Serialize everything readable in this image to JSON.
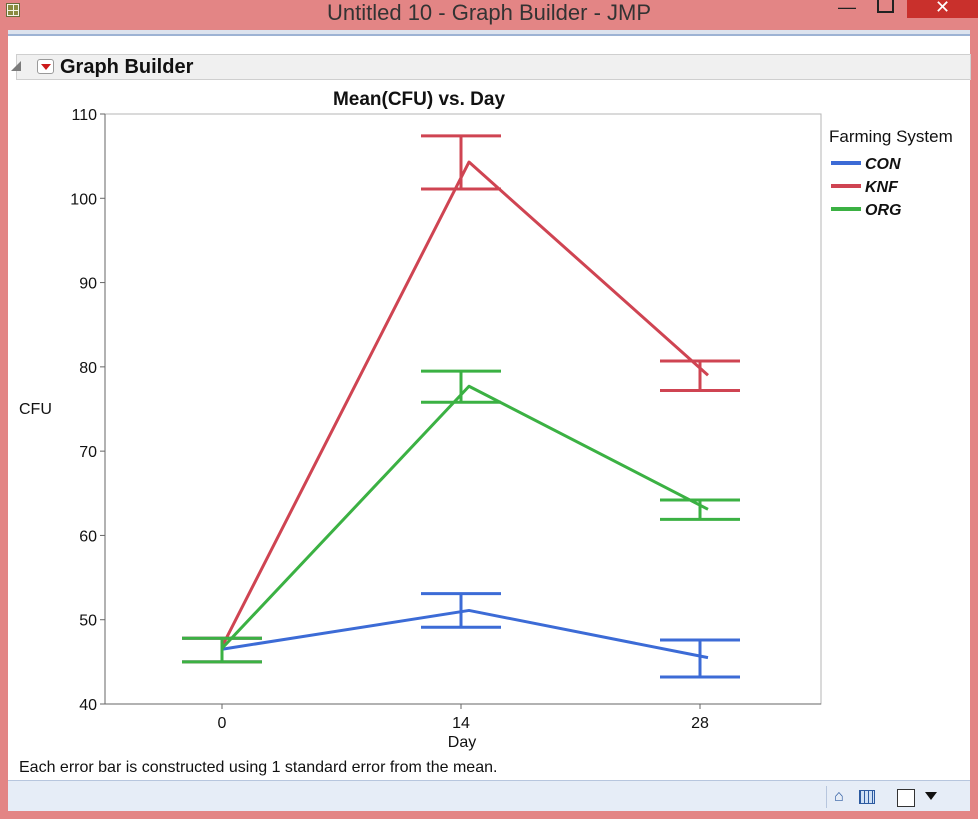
{
  "window": {
    "title": "Untitled 10 - Graph Builder - JMP",
    "minimize_glyph": "—",
    "close_glyph": "✕"
  },
  "outline": {
    "title": "Graph Builder"
  },
  "icons": {
    "app": "jmp-grid-icon",
    "disclosure": "disclosure-triangle-icon",
    "red_menu": "red-triangle-menu-icon",
    "home": "home-icon",
    "data_grid": "data-grid-icon",
    "selection": "square-icon",
    "dropdown": "dropdown-icon"
  },
  "status_icons": {
    "home_glyph": "⌂"
  },
  "footnote": "Each error bar is constructed using 1 standard error from the mean.",
  "chart_data": {
    "type": "line",
    "title": "Mean(CFU) vs. Day",
    "xlabel": "Day",
    "ylabel": "CFU",
    "x": [
      0,
      14,
      28
    ],
    "x_ticks": [
      "0",
      "14",
      "28"
    ],
    "ylim": [
      40,
      110
    ],
    "y_ticks": [
      40,
      50,
      60,
      70,
      80,
      90,
      100,
      110
    ],
    "grid": false,
    "legend": {
      "title": "Farming System",
      "position": "right"
    },
    "error_bars": "1 standard error",
    "series": [
      {
        "name": "CON",
        "color": "#3c6bd6",
        "values": [
          46.5,
          51.1,
          45.5
        ],
        "err_low": [
          45.0,
          49.1,
          43.2
        ],
        "err_high": [
          47.8,
          53.1,
          47.6
        ]
      },
      {
        "name": "KNF",
        "color": "#cf4452",
        "values": [
          46.8,
          104.3,
          79.0
        ],
        "err_low": [
          45.0,
          101.1,
          77.2
        ],
        "err_high": [
          47.8,
          107.4,
          80.7
        ]
      },
      {
        "name": "ORG",
        "color": "#3bb143",
        "values": [
          46.6,
          77.7,
          63.1
        ],
        "err_low": [
          45.0,
          75.8,
          61.9
        ],
        "err_high": [
          47.8,
          79.5,
          64.2
        ]
      }
    ]
  }
}
